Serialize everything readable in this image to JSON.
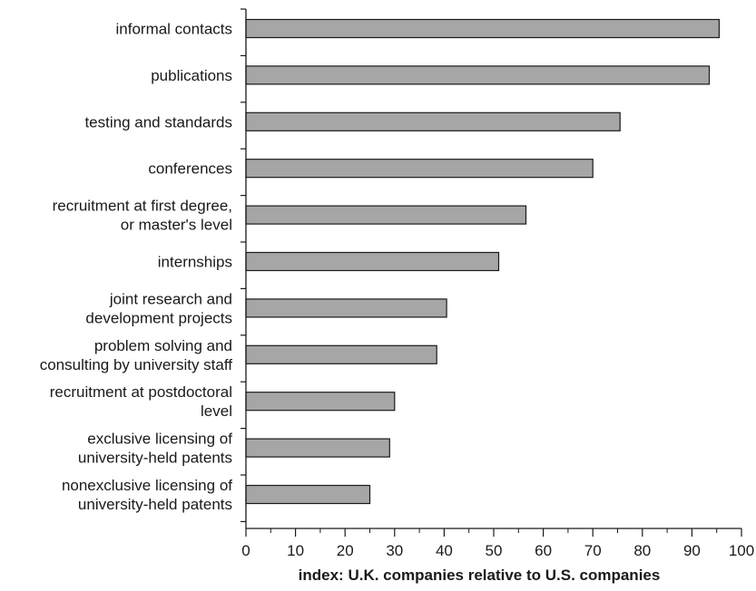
{
  "chart_data": {
    "type": "bar",
    "orientation": "horizontal",
    "categories": [
      [
        "informal contacts"
      ],
      [
        "publications"
      ],
      [
        "testing and standards"
      ],
      [
        "conferences"
      ],
      [
        "recruitment at first degree,",
        "or master's level"
      ],
      [
        "internships"
      ],
      [
        "joint research and",
        "development projects"
      ],
      [
        "problem solving and",
        "consulting by university staff"
      ],
      [
        "recruitment at postdoctoral",
        "level"
      ],
      [
        "exclusive licensing of",
        "university-held patents"
      ],
      [
        "nonexclusive licensing of",
        "university-held patents"
      ]
    ],
    "values": [
      95.5,
      93.5,
      75.5,
      70,
      56.5,
      51,
      40.5,
      38.5,
      30,
      29,
      25
    ],
    "xlabel": "index: U.K. companies relative to U.S. companies",
    "ylabel": "",
    "title": "",
    "xlim": [
      0,
      100
    ],
    "xticks": [
      0,
      10,
      20,
      30,
      40,
      50,
      60,
      70,
      80,
      90,
      100
    ],
    "grid": false,
    "legend": "none",
    "colors": {
      "bar_fill": "#a6a6a6",
      "bar_stroke": "#1a1a1a",
      "axis": "#1a1a1a"
    }
  }
}
